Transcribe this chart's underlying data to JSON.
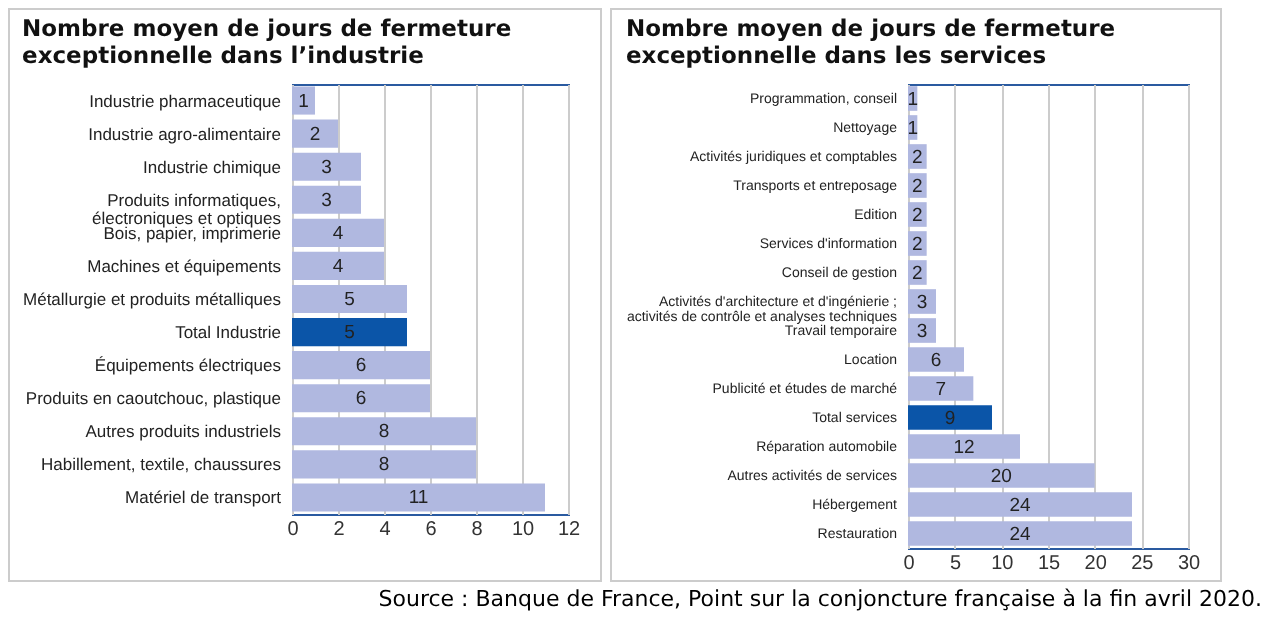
{
  "chart_data": [
    {
      "type": "bar",
      "orientation": "horizontal",
      "title": "Nombre moyen de jours de fermeture\nexceptionnelle dans l’industrie",
      "categories": [
        "Industrie pharmaceutique",
        "Industrie agro-alimentaire",
        "Industrie chimique",
        "Produits informatiques,\nélectroniques et optiques",
        "Bois, papier, imprimerie",
        "Machines et équipements",
        "Métallurgie et produits métalliques",
        "Total Industrie",
        "Équipements électriques",
        "Produits en caoutchouc, plastique",
        "Autres produits industriels",
        "Habillement, textile, chaussures",
        "Matériel de transport"
      ],
      "values": [
        1,
        2,
        3,
        3,
        4,
        4,
        5,
        5,
        6,
        6,
        8,
        8,
        11
      ],
      "colors": [
        "#b0b8e0",
        "#b0b8e0",
        "#b0b8e0",
        "#b0b8e0",
        "#b0b8e0",
        "#b0b8e0",
        "#b0b8e0",
        "#0b55a8",
        "#b0b8e0",
        "#b0b8e0",
        "#b0b8e0",
        "#b0b8e0",
        "#b0b8e0"
      ],
      "xlim": [
        0,
        12
      ],
      "xticks": [
        0,
        2,
        4,
        6,
        8,
        10,
        12
      ],
      "grid": true,
      "data_labels": true
    },
    {
      "type": "bar",
      "orientation": "horizontal",
      "title": "Nombre moyen de jours de fermeture\nexceptionnelle dans les services",
      "categories": [
        "Programmation, conseil",
        "Nettoyage",
        "Activités juridiques et comptables",
        "Transports et entreposage",
        "Edition",
        "Services d'information",
        "Conseil de gestion",
        "Activités d'architecture et d'ingénierie ;\nactivités de contrôle et analyses techniques",
        "Travail temporaire",
        "Location",
        "Publicité et études de marché",
        "Total services",
        "Réparation automobile",
        "Autres activités de services",
        "Hébergement",
        "Restauration"
      ],
      "values": [
        1,
        1,
        2,
        2,
        2,
        2,
        2,
        3,
        3,
        6,
        7,
        9,
        12,
        20,
        24,
        24
      ],
      "colors": [
        "#b0b8e0",
        "#b0b8e0",
        "#b0b8e0",
        "#b0b8e0",
        "#b0b8e0",
        "#b0b8e0",
        "#b0b8e0",
        "#b0b8e0",
        "#b0b8e0",
        "#b0b8e0",
        "#b0b8e0",
        "#0b55a8",
        "#b0b8e0",
        "#b0b8e0",
        "#b0b8e0",
        "#b0b8e0"
      ],
      "xlim": [
        0,
        30
      ],
      "xticks": [
        0,
        5,
        10,
        15,
        20,
        25,
        30
      ],
      "grid": true,
      "data_labels": true,
      "annotations": [
        "Source : Banque de France, Point sur la conjoncture française à la fin avril 2020."
      ]
    }
  ]
}
